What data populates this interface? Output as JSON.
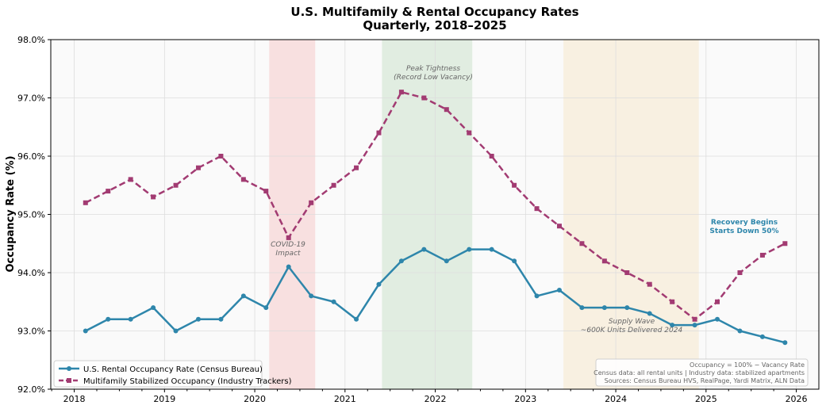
{
  "chart_data": {
    "type": "line",
    "title": "U.S. Multifamily & Rental Occupancy Rates",
    "subtitle": "Quarterly, 2018–2025",
    "xlabel": "",
    "ylabel": "Occupancy Rate (%)",
    "xlim": [
      2017.74,
      2026.25
    ],
    "ylim": [
      92.0,
      98.0
    ],
    "x_ticks": [
      "2018",
      "2019",
      "2020",
      "2021",
      "2022",
      "2023",
      "2024",
      "2025",
      "2026"
    ],
    "y_ticks": [
      "92.0%",
      "93.0%",
      "94.0%",
      "95.0%",
      "96.0%",
      "97.0%",
      "98.0%"
    ],
    "grid": true,
    "legend_placement": "lower-left",
    "x": [
      2018.125,
      2018.375,
      2018.625,
      2018.875,
      2019.125,
      2019.375,
      2019.625,
      2019.875,
      2020.125,
      2020.375,
      2020.625,
      2020.875,
      2021.125,
      2021.375,
      2021.625,
      2021.875,
      2022.125,
      2022.375,
      2022.625,
      2022.875,
      2023.125,
      2023.375,
      2023.625,
      2023.875,
      2024.125,
      2024.375,
      2024.625,
      2024.875,
      2025.125,
      2025.375,
      2025.625,
      2025.875
    ],
    "series": [
      {
        "name": "U.S. Rental Occupancy Rate (Census Bureau)",
        "color": "#2e86ab",
        "style": "solid",
        "marker": "circle",
        "values": [
          93.0,
          93.2,
          93.2,
          93.4,
          93.0,
          93.2,
          93.2,
          93.6,
          93.4,
          94.1,
          93.6,
          93.5,
          93.2,
          93.8,
          94.2,
          94.4,
          94.2,
          94.4,
          94.4,
          94.2,
          93.6,
          93.7,
          93.4,
          93.4,
          93.4,
          93.3,
          93.1,
          93.1,
          93.2,
          93.0,
          92.9,
          92.8
        ]
      },
      {
        "name": "Multifamily Stabilized Occupancy (Industry Trackers)",
        "color": "#a23b72",
        "style": "dashed",
        "marker": "square",
        "values": [
          95.2,
          95.4,
          95.6,
          95.3,
          95.5,
          95.8,
          96.0,
          95.6,
          95.4,
          94.6,
          95.2,
          95.5,
          95.8,
          96.4,
          97.1,
          97.0,
          96.8,
          96.4,
          96.0,
          95.5,
          95.1,
          94.8,
          94.5,
          94.2,
          94.0,
          93.8,
          93.5,
          93.2,
          93.5,
          94.0,
          94.3,
          94.5
        ]
      }
    ],
    "shaded_regions": [
      {
        "from": 2020.16,
        "to": 2020.67,
        "color": "#f4a6a6",
        "label_lines": [
          "COVID-19",
          "Impact"
        ]
      },
      {
        "from": 2021.41,
        "to": 2022.41,
        "color": "#a9cfa9",
        "label_lines": [
          "Peak Tightness",
          "(Record Low Vacancy)"
        ]
      },
      {
        "from": 2023.42,
        "to": 2024.92,
        "color": "#f5d9a8",
        "label_lines": [
          "Supply Wave",
          "~600K Units Delivered 2024"
        ]
      }
    ],
    "annotations": [
      {
        "lines": [
          "Recovery Begins",
          "Starts Down 50%"
        ],
        "color": "#2e86ab"
      }
    ],
    "note_lines": [
      "Occupancy = 100% − Vacancy Rate",
      "Census data: all rental units | Industry data: stabilized apartments",
      "Sources: Census Bureau HVS, RealPage, Yardi Matrix, ALN Data"
    ]
  }
}
